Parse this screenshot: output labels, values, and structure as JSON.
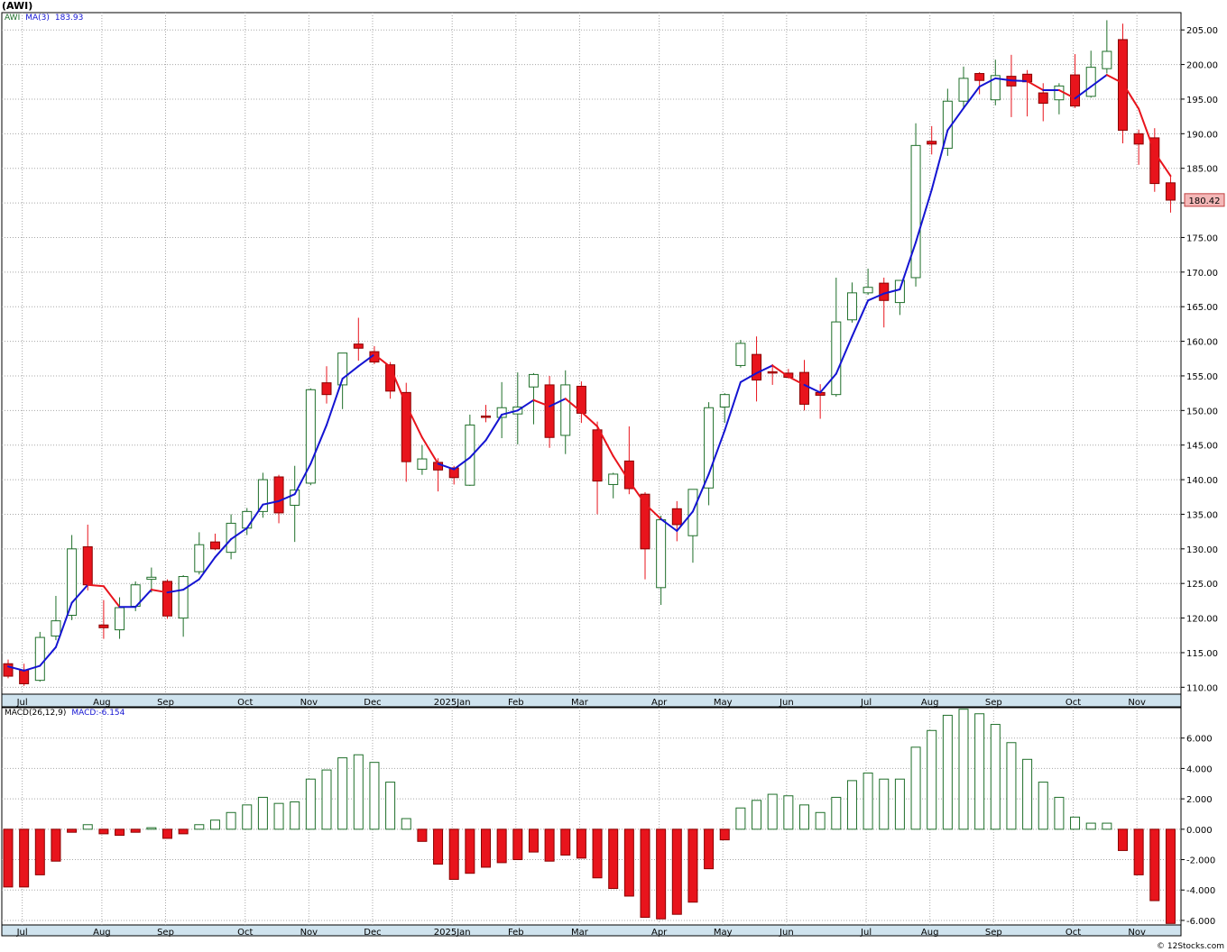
{
  "ticker_title": "(AWI)",
  "copyright": "© 12Stocks.com",
  "colors": {
    "up": "#1f6f2a",
    "down": "#e8141c",
    "ma_up": "#1414d2",
    "ma_down": "#e8141c",
    "axis_bg": "#cfe3ee",
    "grid": "#a8a8a8",
    "last_price_bg": "#f4b8b8"
  },
  "price_legend": {
    "symbol": "AWI",
    "ma_label": "MA(3)",
    "ma_value": "183.93"
  },
  "macd_legend": {
    "label": "MACD(26,12,9)",
    "value_label": "MACD:-6.154"
  },
  "last_price": "180.42",
  "chart_data": [
    {
      "type": "candlestick",
      "interval": "weekly",
      "x_labels": [
        "Jul",
        "Aug",
        "Sep",
        "Oct",
        "Nov",
        "Dec",
        "2025Jan",
        "Feb",
        "Mar",
        "Apr",
        "May",
        "Jun",
        "Jul",
        "Aug",
        "Sep",
        "Oct",
        "Nov"
      ],
      "x_label_week_index": [
        1,
        6,
        10,
        15,
        19,
        23,
        28,
        32,
        36,
        41,
        45,
        49,
        54,
        58,
        62,
        67,
        71
      ],
      "ylim": [
        109,
        207.5
      ],
      "y_ticks": [
        110,
        115,
        120,
        125,
        130,
        135,
        140,
        145,
        150,
        155,
        160,
        165,
        170,
        175,
        180,
        185,
        190,
        195,
        200,
        205
      ],
      "y_tick_labels": [
        "110.00",
        "115.00",
        "120.00",
        "125.00",
        "130.00",
        "135.00",
        "140.00",
        "145.00",
        "150.00",
        "155.00",
        "160.00",
        "165.00",
        "170.00",
        "175.00",
        "180.00",
        "185.00",
        "190.00",
        "195.00",
        "200.00",
        "205.00"
      ],
      "ohlc": [
        [
          113.4,
          114.0,
          111.3,
          111.6
        ],
        [
          112.5,
          113.4,
          110.2,
          110.5
        ],
        [
          111.0,
          118.0,
          110.8,
          117.2
        ],
        [
          117.4,
          123.2,
          116.8,
          119.6
        ],
        [
          120.4,
          132.0,
          119.7,
          130.0
        ],
        [
          130.3,
          133.5,
          124.0,
          124.8
        ],
        [
          119.0,
          122.6,
          117.0,
          118.6
        ],
        [
          118.3,
          123.0,
          117.0,
          121.5
        ],
        [
          121.7,
          125.3,
          121.0,
          124.8
        ],
        [
          125.6,
          127.3,
          123.7,
          125.9
        ],
        [
          125.3,
          125.6,
          119.9,
          120.3
        ],
        [
          120.0,
          126.2,
          117.3,
          126.0
        ],
        [
          126.7,
          132.4,
          126.3,
          130.6
        ],
        [
          131.0,
          132.2,
          129.8,
          130.0
        ],
        [
          129.5,
          135.0,
          128.5,
          133.7
        ],
        [
          133.0,
          135.9,
          132.0,
          135.4
        ],
        [
          135.4,
          141.0,
          134.5,
          140.0
        ],
        [
          140.4,
          140.7,
          133.7,
          135.2
        ],
        [
          136.3,
          142.0,
          131.0,
          138.5
        ],
        [
          139.5,
          153.2,
          139.2,
          153.0
        ],
        [
          154.0,
          156.4,
          151.0,
          152.3
        ],
        [
          153.7,
          158.2,
          150.2,
          158.3
        ],
        [
          159.6,
          163.4,
          157.2,
          159.0
        ],
        [
          158.5,
          159.3,
          156.7,
          157.0
        ],
        [
          156.6,
          157.0,
          151.7,
          152.8
        ],
        [
          152.6,
          154.0,
          139.7,
          142.6
        ],
        [
          141.5,
          145.0,
          140.7,
          143.0
        ],
        [
          142.5,
          143.1,
          138.3,
          141.4
        ],
        [
          141.7,
          142.0,
          139.3,
          140.3
        ],
        [
          139.2,
          149.4,
          139.1,
          147.9
        ],
        [
          149.2,
          150.8,
          148.3,
          149.0
        ],
        [
          149.0,
          154.1,
          146.0,
          150.4
        ],
        [
          149.5,
          155.5,
          145.1,
          150.5
        ],
        [
          153.4,
          155.4,
          148.0,
          155.2
        ],
        [
          153.7,
          155.0,
          144.6,
          146.1
        ],
        [
          146.4,
          155.8,
          143.7,
          153.7
        ],
        [
          153.5,
          154.2,
          148.2,
          149.6
        ],
        [
          147.2,
          148.4,
          135.0,
          139.8
        ],
        [
          139.3,
          141.0,
          137.3,
          140.8
        ],
        [
          142.7,
          147.7,
          137.9,
          138.7
        ],
        [
          137.9,
          138.2,
          125.6,
          130.0
        ],
        [
          124.4,
          134.8,
          121.9,
          134.2
        ],
        [
          135.8,
          136.9,
          131.1,
          133.5
        ],
        [
          131.9,
          138.6,
          128.0,
          138.6
        ],
        [
          138.8,
          151.2,
          136.3,
          150.4
        ],
        [
          150.5,
          152.5,
          148.2,
          152.3
        ],
        [
          156.5,
          160.2,
          156.2,
          159.7
        ],
        [
          158.1,
          160.7,
          151.3,
          154.4
        ],
        [
          155.6,
          156.7,
          153.7,
          155.5
        ],
        [
          155.4,
          156.0,
          154.6,
          154.8
        ],
        [
          155.5,
          157.3,
          150.0,
          150.9
        ],
        [
          152.6,
          153.8,
          148.8,
          152.2
        ],
        [
          152.3,
          169.2,
          152.0,
          162.8
        ],
        [
          163.1,
          168.5,
          162.7,
          167.0
        ],
        [
          167.0,
          170.5,
          166.7,
          167.8
        ],
        [
          168.4,
          169.2,
          162.0,
          165.9
        ],
        [
          165.6,
          168.5,
          163.8,
          168.8
        ],
        [
          169.2,
          191.5,
          167.9,
          188.3
        ],
        [
          188.9,
          191.1,
          187.0,
          188.5
        ],
        [
          187.9,
          196.5,
          186.8,
          194.7
        ],
        [
          194.7,
          199.7,
          193.8,
          198.0
        ],
        [
          198.7,
          198.9,
          195.7,
          197.7
        ],
        [
          194.9,
          200.7,
          194.1,
          198.4
        ],
        [
          198.3,
          201.4,
          192.4,
          196.9
        ],
        [
          198.6,
          199.2,
          192.5,
          197.5
        ],
        [
          195.9,
          197.3,
          191.8,
          194.4
        ],
        [
          194.9,
          197.3,
          192.8,
          196.9
        ],
        [
          198.5,
          201.5,
          193.7,
          194.0
        ],
        [
          195.4,
          202.0,
          195.2,
          199.6
        ],
        [
          199.4,
          206.4,
          198.7,
          201.9
        ],
        [
          203.6,
          205.9,
          188.6,
          190.5
        ],
        [
          190.0,
          190.6,
          185.5,
          188.5
        ],
        [
          189.4,
          190.8,
          181.6,
          182.8
        ],
        [
          182.9,
          183.8,
          178.6,
          180.4
        ]
      ],
      "ma3": [
        113.0,
        112.4,
        113.1,
        115.8,
        122.2,
        124.8,
        124.6,
        121.6,
        121.6,
        124.1,
        123.7,
        124.1,
        125.6,
        128.8,
        131.4,
        133.0,
        136.4,
        136.9,
        137.9,
        142.3,
        147.9,
        154.6,
        156.4,
        158.1,
        156.3,
        150.8,
        146.1,
        142.3,
        141.5,
        143.2,
        145.7,
        149.4,
        150.0,
        151.5,
        150.6,
        151.7,
        149.8,
        147.7,
        143.4,
        139.8,
        136.5,
        134.3,
        132.6,
        135.4,
        140.8,
        147.1,
        154.1,
        155.4,
        156.5,
        154.9,
        153.7,
        152.6,
        155.3,
        160.7,
        165.9,
        166.9,
        167.5,
        174.3,
        181.9,
        190.5,
        193.7,
        196.8,
        198.0,
        197.7,
        197.6,
        196.3,
        196.3,
        195.1,
        196.8,
        198.5,
        197.3,
        193.6,
        187.3,
        183.9
      ],
      "ma3_color_by_week": [
        "down",
        "up",
        "up",
        "up",
        "up",
        "up",
        "down",
        "down",
        "up",
        "up",
        "down",
        "up",
        "up",
        "up",
        "up",
        "up",
        "up",
        "up",
        "up",
        "up",
        "up",
        "up",
        "up",
        "up",
        "down",
        "down",
        "down",
        "down",
        "up",
        "up",
        "up",
        "up",
        "up",
        "up",
        "down",
        "up",
        "down",
        "down",
        "down",
        "down",
        "down",
        "down",
        "up",
        "up",
        "up",
        "up",
        "up",
        "up",
        "up",
        "down",
        "down",
        "up",
        "up",
        "up",
        "up",
        "up",
        "up",
        "up",
        "up",
        "up",
        "up",
        "up",
        "up",
        "up",
        "up",
        "down",
        "up",
        "down",
        "up",
        "up",
        "down",
        "down",
        "down",
        "down"
      ]
    },
    {
      "type": "bar",
      "name": "MACD(26,12,9)",
      "ylim": [
        -6.3,
        8.0
      ],
      "y_ticks": [
        -6,
        -4,
        -2,
        0,
        2,
        4,
        6
      ],
      "y_tick_labels": [
        "-6.000",
        "-4.000",
        "-2.000",
        "0.000",
        "2.000",
        "4.000",
        "6.000"
      ],
      "values": [
        -3.8,
        -3.8,
        -3.0,
        -2.1,
        -0.2,
        0.3,
        -0.3,
        -0.4,
        -0.2,
        0.1,
        -0.6,
        -0.3,
        0.3,
        0.6,
        1.1,
        1.6,
        2.1,
        1.7,
        1.8,
        3.3,
        3.9,
        4.7,
        4.9,
        4.4,
        3.1,
        0.7,
        -0.8,
        -2.3,
        -3.3,
        -2.9,
        -2.5,
        -2.2,
        -2.0,
        -1.5,
        -2.1,
        -1.7,
        -1.9,
        -3.2,
        -3.9,
        -4.4,
        -5.8,
        -5.9,
        -5.6,
        -4.8,
        -2.6,
        -0.7,
        1.4,
        1.9,
        2.3,
        2.2,
        1.6,
        1.1,
        2.1,
        3.2,
        3.7,
        3.3,
        3.3,
        5.4,
        6.5,
        7.5,
        7.9,
        7.6,
        6.9,
        5.7,
        4.6,
        3.1,
        2.1,
        0.8,
        0.4,
        0.4,
        -1.4,
        -3.0,
        -4.7,
        -6.2
      ]
    }
  ]
}
